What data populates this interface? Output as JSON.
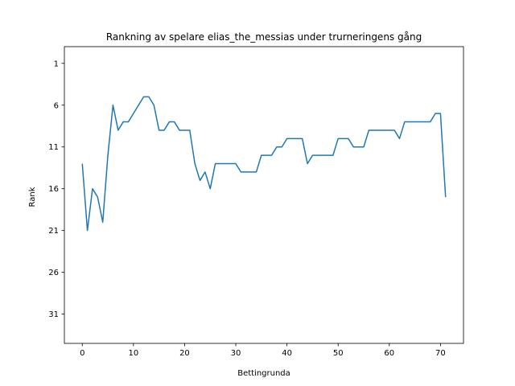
{
  "chart_data": {
    "type": "line",
    "title": "Rankning av spelare elias_the_messias under trurneringens gång",
    "xlabel": "Bettingrunda",
    "ylabel": "Rank",
    "xlim": [
      -3.5,
      74.5
    ],
    "ylim": [
      34.5,
      -1
    ],
    "y_inverted": true,
    "x_ticks": [
      0,
      10,
      20,
      30,
      40,
      50,
      60,
      70
    ],
    "y_ticks": [
      1,
      6,
      11,
      16,
      21,
      26,
      31
    ],
    "grid": false,
    "line_color": "#1f77b4",
    "series": [
      {
        "x": [
          0,
          1,
          2,
          3,
          4,
          5,
          6,
          7,
          8,
          9,
          10,
          11,
          12,
          13,
          14,
          15,
          16,
          17,
          18,
          19,
          20,
          21,
          22,
          23,
          24,
          25,
          26,
          27,
          28,
          29,
          30,
          31,
          32,
          33,
          34,
          35,
          36,
          37,
          38,
          39,
          40,
          41,
          42,
          43,
          44,
          45,
          46,
          47,
          48,
          49,
          50,
          51,
          52,
          53,
          54,
          55,
          56,
          57,
          58,
          59,
          60,
          61,
          62,
          63,
          64,
          65,
          66,
          67,
          68,
          69,
          70,
          71
        ],
        "values": [
          13,
          21,
          16,
          17,
          20,
          12,
          6,
          9,
          8,
          8,
          7,
          6,
          5,
          5,
          6,
          9,
          9,
          8,
          8,
          9,
          9,
          9,
          13,
          15,
          14,
          16,
          13,
          13,
          13,
          13,
          13,
          14,
          14,
          14,
          14,
          12,
          12,
          12,
          11,
          11,
          10,
          10,
          10,
          10,
          13,
          12,
          12,
          12,
          12,
          12,
          10,
          10,
          10,
          11,
          11,
          11,
          9,
          9,
          9,
          9,
          9,
          9,
          10,
          8,
          8,
          8,
          8,
          8,
          8,
          7,
          7,
          17
        ]
      }
    ]
  }
}
